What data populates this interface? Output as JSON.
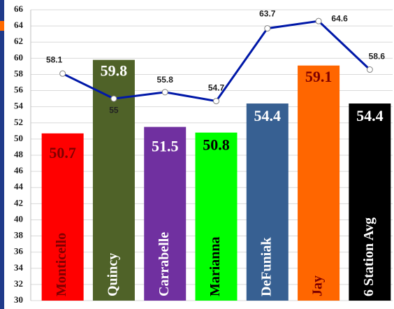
{
  "chart_data": {
    "type": "bar",
    "categories": [
      "Monticello",
      "Quincy",
      "Carrabelle",
      "Marianna",
      "DeFuniak",
      "Jay",
      "6 Station Avg"
    ],
    "series": [
      {
        "type": "bar",
        "values": [
          50.7,
          59.8,
          51.5,
          50.8,
          54.4,
          59.1,
          54.4
        ],
        "colors": [
          "#ff0000",
          "#4f6228",
          "#7030a0",
          "#00ff00",
          "#376092",
          "#ff6600",
          "#000000"
        ],
        "label_colors": [
          "#7f0000",
          "#ffffff",
          "#ffffff",
          "#000000",
          "#ffffff",
          "#7f0000",
          "#ffffff"
        ]
      },
      {
        "type": "line",
        "color": "#0018a8",
        "values": [
          58.1,
          55.0,
          55.8,
          54.7,
          63.7,
          64.6,
          58.6
        ]
      }
    ],
    "ylim": [
      30,
      66
    ],
    "yticks": [
      30,
      32,
      34,
      36,
      38,
      40,
      42,
      44,
      46,
      48,
      50,
      52,
      54,
      56,
      58,
      60,
      62,
      64,
      66
    ],
    "grid": true
  }
}
